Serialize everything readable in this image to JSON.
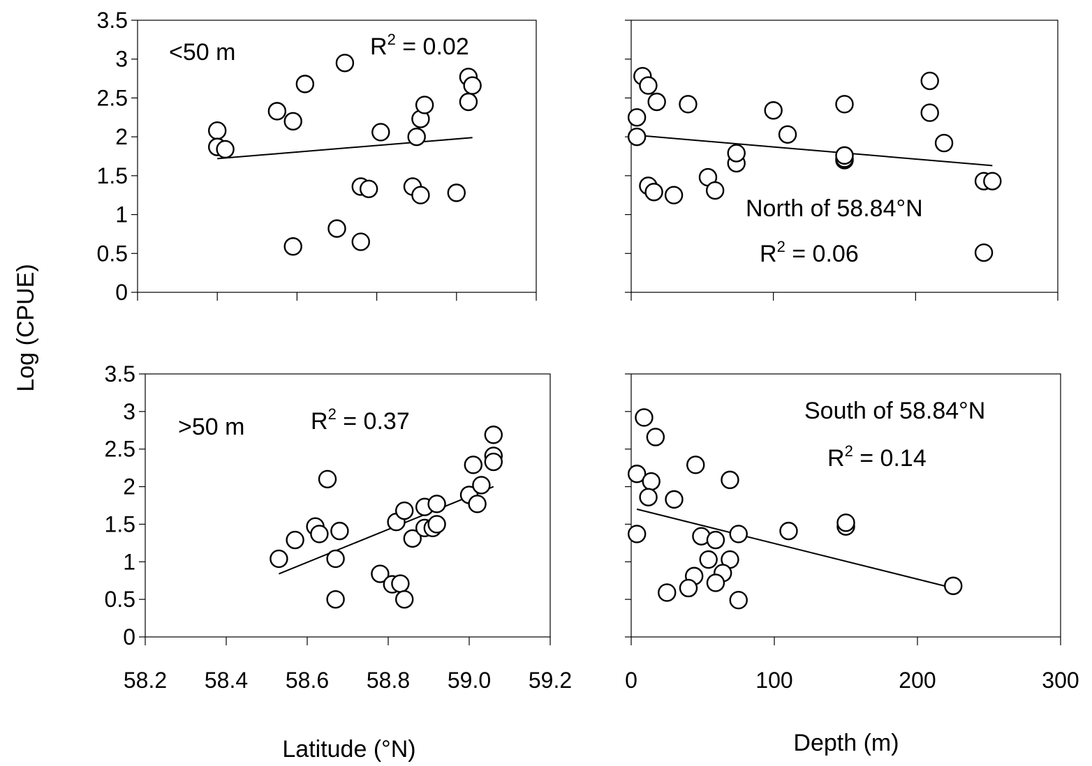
{
  "figure": {
    "ylabel": "Log (CPUE)",
    "xlabel_left": "Latitude (°N)",
    "xlabel_right": "Depth (m)"
  },
  "chart_data": [
    {
      "type": "scatter",
      "panel": "top-left",
      "annotation": "<50 m",
      "r2_label": "R",
      "r2_sup": "2",
      "r2_value": " = 0.02",
      "xlim": [
        58.2,
        59.2
      ],
      "ylim": [
        0,
        3.5
      ],
      "xticks": [
        58.2,
        58.4,
        58.6,
        58.8,
        59.0,
        59.2
      ],
      "xtick_labels": [],
      "yticks": [
        0,
        0.5,
        1,
        1.5,
        2,
        2.5,
        3,
        3.5
      ],
      "ytick_labels": [
        "0",
        "0.5",
        "1",
        "1.5",
        "2",
        "2.5",
        "3",
        "3.5"
      ],
      "points": [
        [
          58.4,
          2.08
        ],
        [
          58.4,
          1.87
        ],
        [
          58.42,
          1.84
        ],
        [
          58.55,
          2.33
        ],
        [
          58.59,
          2.2
        ],
        [
          58.59,
          0.59
        ],
        [
          58.62,
          2.68
        ],
        [
          58.7,
          0.82
        ],
        [
          58.72,
          2.95
        ],
        [
          58.76,
          1.36
        ],
        [
          58.76,
          0.65
        ],
        [
          58.78,
          1.33
        ],
        [
          58.81,
          2.06
        ],
        [
          58.89,
          1.36
        ],
        [
          58.9,
          2.0
        ],
        [
          58.91,
          2.23
        ],
        [
          58.91,
          1.25
        ],
        [
          58.92,
          2.41
        ],
        [
          59.0,
          1.28
        ],
        [
          59.03,
          2.77
        ],
        [
          59.03,
          2.45
        ],
        [
          59.04,
          2.66
        ]
      ],
      "trend": [
        [
          58.4,
          1.72
        ],
        [
          59.04,
          1.99
        ]
      ]
    },
    {
      "type": "scatter",
      "panel": "top-right",
      "annotation": "North of 58.84°N",
      "r2_label": "R",
      "r2_sup": "2",
      "r2_value": " = 0.06",
      "xlim": [
        0,
        300
      ],
      "ylim": [
        0,
        3.5
      ],
      "xticks": [
        0,
        100,
        200,
        300
      ],
      "xtick_labels": [],
      "yticks": [
        0,
        0.5,
        1,
        1.5,
        2,
        2.5,
        3,
        3.5
      ],
      "ytick_labels": [],
      "points": [
        [
          8,
          2.78
        ],
        [
          12,
          2.66
        ],
        [
          18,
          2.45
        ],
        [
          4,
          2.25
        ],
        [
          4,
          2.0
        ],
        [
          12,
          1.37
        ],
        [
          16,
          1.29
        ],
        [
          30,
          1.25
        ],
        [
          40,
          2.42
        ],
        [
          54,
          1.48
        ],
        [
          59,
          1.31
        ],
        [
          74,
          1.66
        ],
        [
          74,
          1.79
        ],
        [
          100,
          2.34
        ],
        [
          110,
          2.03
        ],
        [
          150,
          2.42
        ],
        [
          150,
          1.7
        ],
        [
          150,
          1.72
        ],
        [
          150,
          1.76
        ],
        [
          210,
          2.72
        ],
        [
          210,
          2.31
        ],
        [
          220,
          1.92
        ],
        [
          248,
          1.43
        ],
        [
          254,
          1.43
        ],
        [
          248,
          0.51
        ]
      ],
      "trend": [
        [
          4,
          2.02
        ],
        [
          254,
          1.63
        ]
      ]
    },
    {
      "type": "scatter",
      "panel": "bottom-left",
      "annotation": ">50 m",
      "r2_label": "R",
      "r2_sup": "2",
      "r2_value": " = 0.37",
      "xlim": [
        58.2,
        59.2
      ],
      "ylim": [
        0,
        3.5
      ],
      "xticks": [
        58.2,
        58.4,
        58.6,
        58.8,
        59.0,
        59.2
      ],
      "xtick_labels": [
        "58.2",
        "58.4",
        "58.6",
        "58.8",
        "59.0",
        "59.2"
      ],
      "yticks": [
        0,
        0.5,
        1,
        1.5,
        2,
        2.5,
        3,
        3.5
      ],
      "ytick_labels": [
        "0",
        "0.5",
        "1",
        "1.5",
        "2",
        "2.5",
        "3",
        "3.5"
      ],
      "points": [
        [
          58.53,
          1.04
        ],
        [
          58.57,
          1.29
        ],
        [
          58.62,
          1.47
        ],
        [
          58.63,
          1.37
        ],
        [
          58.65,
          2.1
        ],
        [
          58.67,
          1.04
        ],
        [
          58.67,
          0.5
        ],
        [
          58.68,
          1.41
        ],
        [
          58.78,
          0.84
        ],
        [
          58.81,
          0.7
        ],
        [
          58.82,
          1.53
        ],
        [
          58.83,
          0.71
        ],
        [
          58.84,
          1.68
        ],
        [
          58.84,
          0.5
        ],
        [
          58.86,
          1.31
        ],
        [
          58.89,
          1.73
        ],
        [
          58.89,
          1.45
        ],
        [
          58.91,
          1.45
        ],
        [
          58.92,
          1.77
        ],
        [
          58.92,
          1.5
        ],
        [
          59.0,
          1.89
        ],
        [
          59.01,
          2.29
        ],
        [
          59.02,
          1.77
        ],
        [
          59.03,
          2.02
        ],
        [
          59.06,
          2.69
        ],
        [
          59.06,
          2.41
        ],
        [
          59.06,
          2.33
        ]
      ],
      "trend": [
        [
          58.53,
          0.84
        ],
        [
          59.06,
          2.0
        ]
      ]
    },
    {
      "type": "scatter",
      "panel": "bottom-right",
      "annotation": "South of 58.84°N",
      "r2_label": "R",
      "r2_sup": "2",
      "r2_value": " = 0.14",
      "xlim": [
        0,
        300
      ],
      "ylim": [
        0,
        3.5
      ],
      "xticks": [
        0,
        100,
        200,
        300
      ],
      "xtick_labels": [
        "0",
        "100",
        "200",
        "300"
      ],
      "yticks": [
        0,
        0.5,
        1,
        1.5,
        2,
        2.5,
        3,
        3.5
      ],
      "ytick_labels": [],
      "points": [
        [
          9,
          2.92
        ],
        [
          17,
          2.66
        ],
        [
          4,
          2.17
        ],
        [
          14,
          2.07
        ],
        [
          12,
          1.86
        ],
        [
          30,
          1.83
        ],
        [
          45,
          2.29
        ],
        [
          69,
          2.09
        ],
        [
          4,
          1.37
        ],
        [
          49,
          1.34
        ],
        [
          59,
          1.29
        ],
        [
          75,
          1.37
        ],
        [
          110,
          1.41
        ],
        [
          150,
          1.47
        ],
        [
          150,
          1.52
        ],
        [
          54,
          1.03
        ],
        [
          69,
          1.03
        ],
        [
          44,
          0.81
        ],
        [
          64,
          0.85
        ],
        [
          59,
          0.72
        ],
        [
          40,
          0.65
        ],
        [
          25,
          0.59
        ],
        [
          75,
          0.49
        ],
        [
          225,
          0.68
        ]
      ],
      "trend": [
        [
          4,
          1.7
        ],
        [
          225,
          0.65
        ]
      ]
    }
  ]
}
